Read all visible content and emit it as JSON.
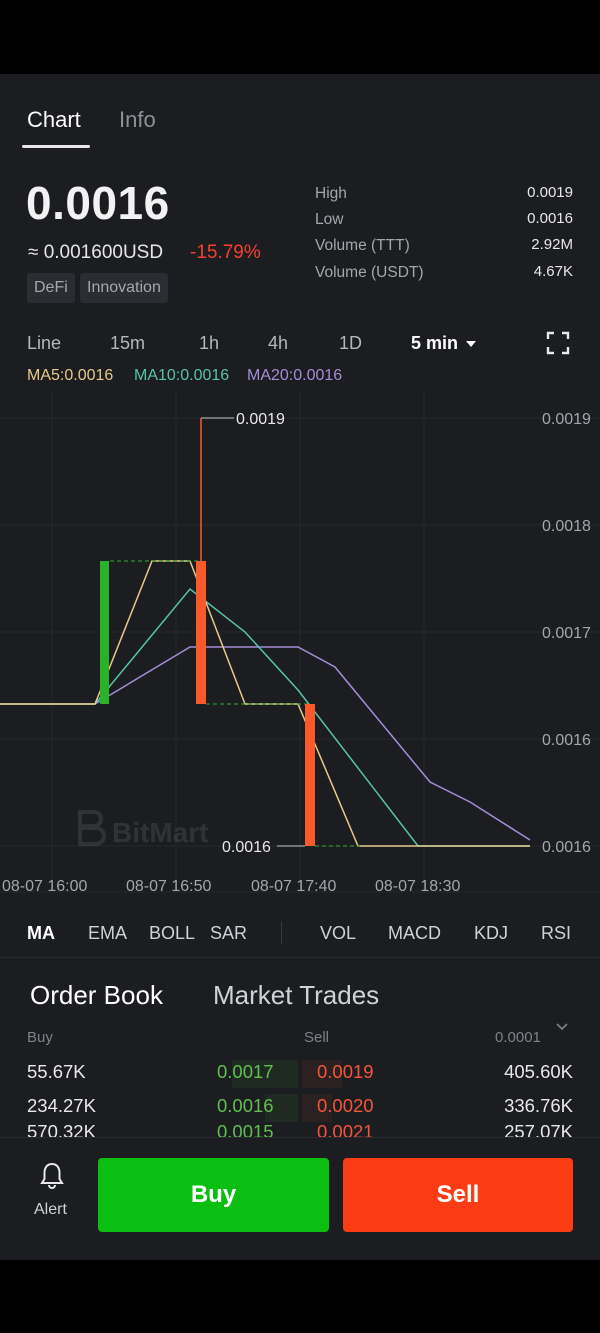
{
  "tabs": [
    {
      "label": "Chart",
      "active": true
    },
    {
      "label": "Info",
      "active": false
    }
  ],
  "ticker": {
    "price": "0.0016",
    "usd_value": "≈ 0.001600USD",
    "change": "-15.79%",
    "tags": [
      "DeFi",
      "Innovation"
    ]
  },
  "stats": [
    {
      "label": "High",
      "value": "0.0019"
    },
    {
      "label": "Low",
      "value": "0.0016"
    },
    {
      "label": "Volume (TTT)",
      "value": "2.92M"
    },
    {
      "label": "Volume (USDT)",
      "value": "4.67K"
    }
  ],
  "timeframes": [
    "Line",
    "15m",
    "1h",
    "4h",
    "1D",
    "5 min"
  ],
  "active_timeframe": "5 min",
  "ma_legend": [
    {
      "label": "MA5:0.0016",
      "color": "#e9c98a"
    },
    {
      "label": "MA10:0.0016",
      "color": "#55c4a8"
    },
    {
      "label": "MA20:0.0016",
      "color": "#a58cd8"
    }
  ],
  "watermark": "BitMart",
  "chart_data": {
    "type": "candlestick",
    "y_tick_labels": [
      "0.0019",
      "0.0018",
      "0.0017",
      "0.0016",
      "0.0016"
    ],
    "x_tick_labels": [
      "08-07 16:00",
      "08-07 16:50",
      "08-07 17:40",
      "08-07 18:30"
    ],
    "high_label": "0.0019",
    "low_label": "0.0016",
    "candles": [
      {
        "open": 0.00164,
        "close": 0.001768,
        "high": 0.001768,
        "low": 0.00164,
        "direction": "up"
      },
      {
        "open": 0.001768,
        "close": 0.00164,
        "high": 0.0019,
        "low": 0.00164,
        "direction": "down"
      },
      {
        "open": 0.00164,
        "close": 0.0016,
        "high": 0.00164,
        "low": 0.0016,
        "direction": "down"
      }
    ],
    "colors": {
      "up": "#2ab32a",
      "down": "#fa5a2a"
    }
  },
  "indicators": [
    "MA",
    "EMA",
    "BOLL",
    "SAR",
    "VOL",
    "MACD",
    "KDJ",
    "RSI"
  ],
  "active_indicator": "MA",
  "order_book": {
    "tabs": [
      "Order Book",
      "Market Trades"
    ],
    "headers": {
      "buy": "Buy",
      "sell": "Sell",
      "precision": "0.0001"
    },
    "rows": [
      {
        "buy_amount": "55.67K",
        "buy_price": "0.0017",
        "sell_price": "0.0019",
        "sell_amount": "405.60K"
      },
      {
        "buy_amount": "234.27K",
        "buy_price": "0.0016",
        "sell_price": "0.0020",
        "sell_amount": "336.76K"
      },
      {
        "buy_amount": "570.32K",
        "buy_price": "0.0015",
        "sell_price": "0.0021",
        "sell_amount": "257.07K"
      }
    ]
  },
  "bottom": {
    "alert_label": "Alert",
    "buy_label": "Buy",
    "sell_label": "Sell",
    "buy_color": "#0bbf12",
    "sell_color": "#fb3c14"
  }
}
